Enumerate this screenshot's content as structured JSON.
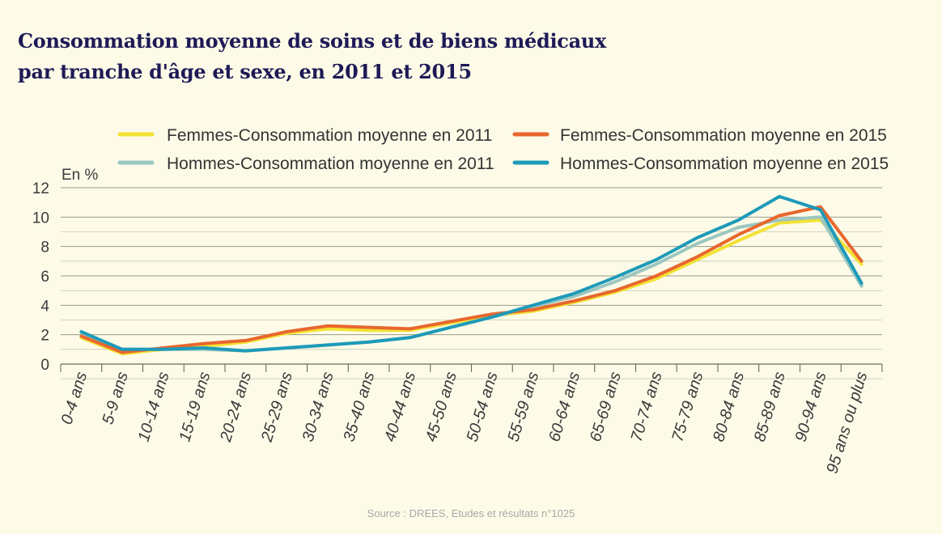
{
  "title_lines": [
    "Consommation moyenne de soins et de biens médicaux",
    "par tranche d'âge et sexe, en 2011 et 2015"
  ],
  "source": "Source : DREES, Etudes et résultats n°1025",
  "colors": {
    "background": "#fdfbe8",
    "title": "#1e1a56",
    "femmes_2011": "#f3e234",
    "femmes_2015": "#e8672d",
    "hommes_2011": "#9cc7c0",
    "hommes_2015": "#1e9ab9"
  },
  "chart_data": {
    "type": "line",
    "title": "Consommation moyenne de soins et de biens médicaux par tranche d'âge et sexe, en 2011 et 2015",
    "ylabel": "En %",
    "xlabel": "",
    "ylim": [
      0,
      12
    ],
    "yticks": [
      "0",
      "2",
      "4",
      "6",
      "8",
      "10",
      "12"
    ],
    "grid": true,
    "legend_position": "top",
    "categories": [
      "0-4 ans",
      "5-9 ans",
      "10-14 ans",
      "15-19 ans",
      "20-24 ans",
      "25-29 ans",
      "30-34 ans",
      "35-40 ans",
      "40-44 ans",
      "45-50 ans",
      "50-54 ans",
      "55-59 ans",
      "60-64 ans",
      "65-69 ans",
      "70-74 ans",
      "75-79 ans",
      "80-84 ans",
      "85-89 ans",
      "90-94 ans",
      "95 ans ou plus"
    ],
    "series": [
      {
        "name": "Femmes-Consommation moyenne en 2011",
        "color": "#f3e234",
        "values": [
          1.8,
          0.7,
          1.0,
          1.2,
          1.5,
          2.1,
          2.4,
          2.3,
          2.3,
          2.8,
          3.3,
          3.6,
          4.2,
          4.9,
          5.8,
          7.1,
          8.4,
          9.6,
          9.8,
          6.8
        ]
      },
      {
        "name": "Hommes-Consommation moyenne en 2011",
        "color": "#9cc7c0",
        "values": [
          2.0,
          1.0,
          1.0,
          1.0,
          0.9,
          1.1,
          1.3,
          1.5,
          1.8,
          2.5,
          3.2,
          3.9,
          4.6,
          5.6,
          6.8,
          8.2,
          9.3,
          9.8,
          10.0,
          5.3
        ]
      },
      {
        "name": "Femmes-Consommation moyenne en  2015",
        "color": "#e8672d",
        "values": [
          1.9,
          0.8,
          1.1,
          1.4,
          1.6,
          2.2,
          2.6,
          2.5,
          2.4,
          2.9,
          3.4,
          3.7,
          4.3,
          5.0,
          6.0,
          7.3,
          8.8,
          10.1,
          10.7,
          7.0
        ]
      },
      {
        "name": "Hommes-Consommation moyenne en 2015",
        "color": "#1e9ab9",
        "values": [
          2.2,
          1.0,
          1.0,
          1.1,
          0.9,
          1.1,
          1.3,
          1.5,
          1.8,
          2.5,
          3.2,
          4.0,
          4.8,
          5.9,
          7.1,
          8.6,
          9.8,
          11.4,
          10.5,
          5.5
        ]
      }
    ]
  }
}
